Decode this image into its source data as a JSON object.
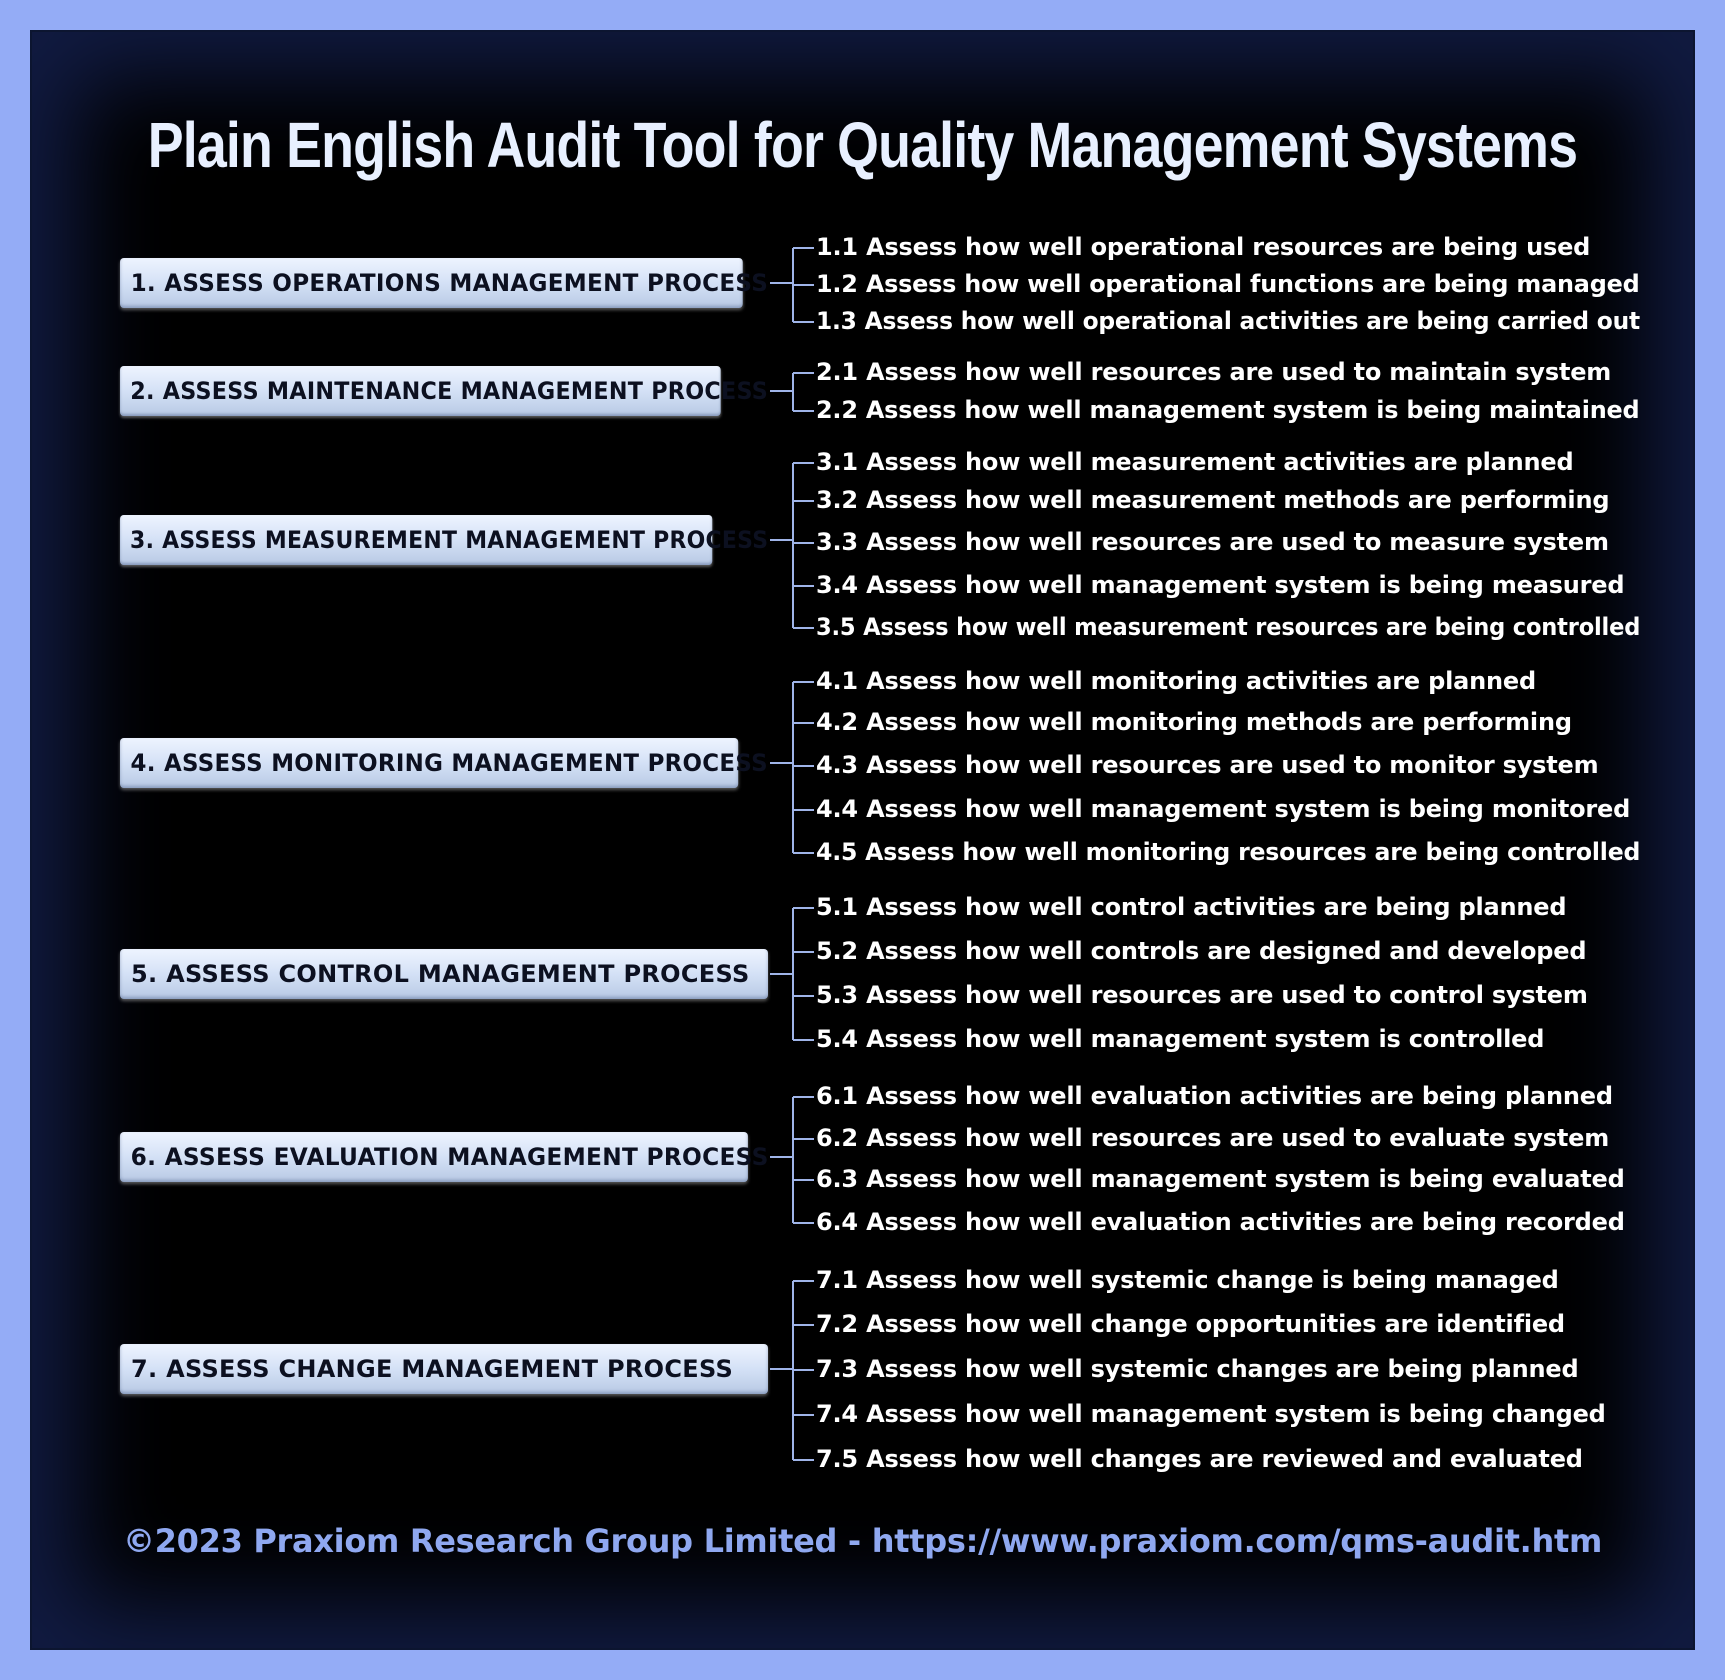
{
  "title": "Plain English Audit Tool for Quality Management Systems",
  "footer": "©2023 Praxiom Research Group Limited - https://www.praxiom.com/qms-audit.htm",
  "processes": [
    {
      "label": "1. ASSESS OPERATIONS MANAGEMENT PROCESS",
      "items": [
        "1.1 Assess how well operational resources are being used",
        "1.2 Assess how well operational functions are being managed",
        "1.3 Assess how well operational activities are being carried out"
      ]
    },
    {
      "label": "2. ASSESS MAINTENANCE MANAGEMENT PROCESS",
      "items": [
        "2.1 Assess how well resources are used to maintain system",
        "2.2 Assess how well management system is being maintained"
      ]
    },
    {
      "label": "3. ASSESS MEASUREMENT MANAGEMENT PROCESS",
      "items": [
        "3.1 Assess how well measurement activities are planned",
        "3.2 Assess how well measurement methods are performing",
        "3.3 Assess how well resources are used to measure system",
        "3.4 Assess how well management system is being measured",
        "3.5 Assess how well measurement resources are being controlled"
      ]
    },
    {
      "label": "4. ASSESS MONITORING MANAGEMENT PROCESS",
      "items": [
        "4.1 Assess how well monitoring activities are planned",
        "4.2 Assess how well monitoring methods are performing",
        "4.3 Assess how well resources are used to monitor system",
        "4.4 Assess how well management system is being monitored",
        "4.5 Assess how well monitoring resources are being controlled"
      ]
    },
    {
      "label": "5. ASSESS CONTROL MANAGEMENT PROCESS",
      "items": [
        "5.1 Assess how well control activities are being planned",
        "5.2 Assess how well controls are designed and developed",
        "5.3 Assess how well resources are used to control system",
        "5.4 Assess how well management system is controlled"
      ]
    },
    {
      "label": "6. ASSESS EVALUATION MANAGEMENT PROCESS",
      "items": [
        "6.1 Assess how well evaluation activities are being planned",
        "6.2 Assess how well resources are used to evaluate system",
        "6.3 Assess how well management system is being evaluated",
        "6.4 Assess how well evaluation activities are being recorded"
      ]
    },
    {
      "label": "7. ASSESS CHANGE MANAGEMENT PROCESS",
      "items": [
        "7.1 Assess how well systemic change is being managed",
        "7.2 Assess how well change opportunities are identified",
        "7.3 Assess how well systemic changes are being planned",
        "7.4 Assess how well management system is being changed",
        "7.5 Assess how well changes are reviewed and evaluated"
      ]
    }
  ]
}
